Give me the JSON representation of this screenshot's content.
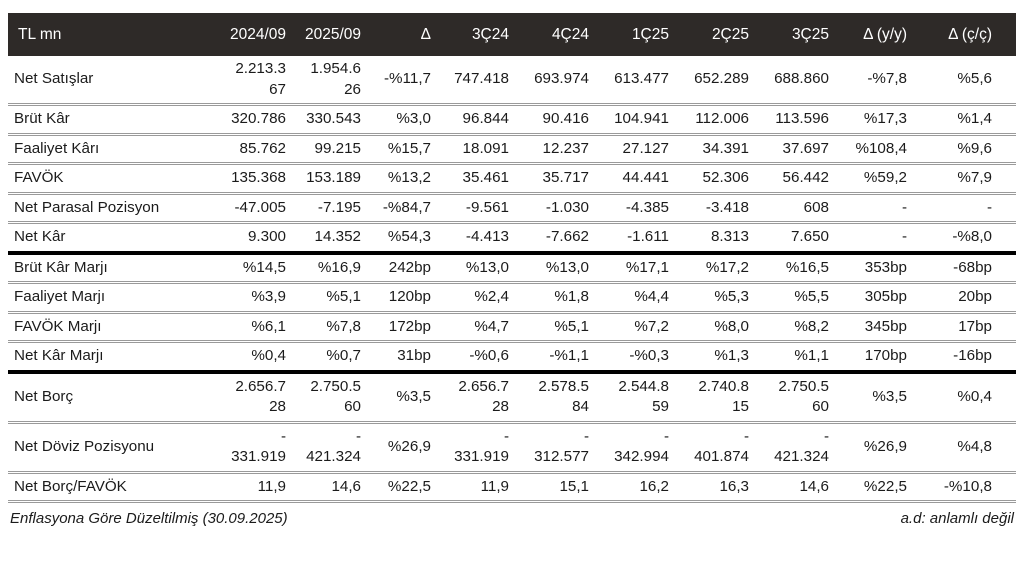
{
  "table": {
    "unit_label": "TL mn",
    "columns": [
      "2024/09",
      "2025/09",
      "Δ",
      "3Ç24",
      "4Ç24",
      "1Ç25",
      "2Ç25",
      "3Ç25",
      "Δ (y/y)",
      "Δ (ç/ç)"
    ],
    "sections": [
      {
        "rows": [
          {
            "label": "Net Satışlar",
            "values": [
              "2.213.3\n67",
              "1.954.6\n26",
              "-%11,7",
              "747.418",
              "693.974",
              "613.477",
              "652.289",
              "688.860",
              "-%7,8",
              "%5,6"
            ]
          },
          {
            "label": "Brüt Kâr",
            "values": [
              "320.786",
              "330.543",
              "%3,0",
              "96.844",
              "90.416",
              "104.941",
              "112.006",
              "113.596",
              "%17,3",
              "%1,4"
            ]
          },
          {
            "label": "Faaliyet Kârı",
            "values": [
              "85.762",
              "99.215",
              "%15,7",
              "18.091",
              "12.237",
              "27.127",
              "34.391",
              "37.697",
              "%108,4",
              "%9,6"
            ]
          },
          {
            "label": "FAVÖK",
            "values": [
              "135.368",
              "153.189",
              "%13,2",
              "35.461",
              "35.717",
              "44.441",
              "52.306",
              "56.442",
              "%59,2",
              "%7,9"
            ]
          },
          {
            "label": "Net Parasal Pozisyon",
            "values": [
              "-47.005",
              "-7.195",
              "-%84,7",
              "-9.561",
              "-1.030",
              "-4.385",
              "-3.418",
              "608",
              "-",
              "-"
            ]
          },
          {
            "label": "Net Kâr",
            "values": [
              "9.300",
              "14.352",
              "%54,3",
              "-4.413",
              "-7.662",
              "-1.611",
              "8.313",
              "7.650",
              "-",
              "-%8,0"
            ]
          }
        ]
      },
      {
        "rows": [
          {
            "label": "Brüt Kâr Marjı",
            "values": [
              "%14,5",
              "%16,9",
              "242bp",
              "%13,0",
              "%13,0",
              "%17,1",
              "%17,2",
              "%16,5",
              "353bp",
              "-68bp"
            ]
          },
          {
            "label": "Faaliyet Marjı",
            "values": [
              "%3,9",
              "%5,1",
              "120bp",
              "%2,4",
              "%1,8",
              "%4,4",
              "%5,3",
              "%5,5",
              "305bp",
              "20bp"
            ]
          },
          {
            "label": "FAVÖK Marjı",
            "values": [
              "%6,1",
              "%7,8",
              "172bp",
              "%4,7",
              "%5,1",
              "%7,2",
              "%8,0",
              "%8,2",
              "345bp",
              "17bp"
            ]
          },
          {
            "label": "Net Kâr Marjı",
            "values": [
              "%0,4",
              "%0,7",
              "31bp",
              "-%0,6",
              "-%1,1",
              "-%0,3",
              "%1,3",
              "%1,1",
              "170bp",
              "-16bp"
            ]
          }
        ]
      },
      {
        "rows": [
          {
            "label": "Net Borç",
            "values": [
              "2.656.7\n28",
              "2.750.5\n60",
              "%3,5",
              "2.656.7\n28",
              "2.578.5\n84",
              "2.544.8\n59",
              "2.740.8\n15",
              "2.750.5\n60",
              "%3,5",
              "%0,4"
            ]
          },
          {
            "label": "Net Döviz Pozisyonu",
            "values": [
              "-\n331.919",
              "-\n421.324",
              "%26,9",
              "-\n331.919",
              "-\n312.577",
              "-\n342.994",
              "-\n401.874",
              "-\n421.324",
              "%26,9",
              "%4,8"
            ]
          },
          {
            "label": "Net Borç/FAVÖK",
            "values": [
              "11,9",
              "14,6",
              "%22,5",
              "11,9",
              "15,1",
              "16,2",
              "16,3",
              "14,6",
              "%22,5",
              "-%10,8"
            ]
          }
        ]
      }
    ]
  },
  "footer": {
    "left": "Enflasyona Göre Düzeltilmiş (30.09.2025)",
    "right": "a.d: anlamlı değil"
  },
  "colors": {
    "header_bg": "#2e2a28",
    "header_text": "#ffffff",
    "row_divider": "#9a9a9a",
    "section_divider": "#000000",
    "body_text": "#1b1b1b"
  }
}
